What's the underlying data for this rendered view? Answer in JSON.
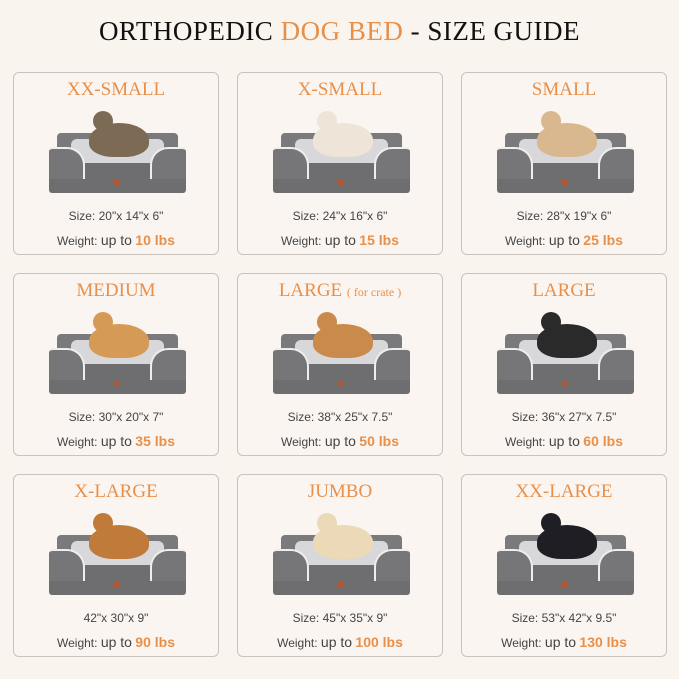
{
  "title": {
    "part1": "ORTHOPEDIC",
    "highlight": "DOG BED",
    "part2": "- SIZE GUIDE"
  },
  "colors": {
    "accent": "#e8904a",
    "background": "#faf4ef",
    "bed": "#6e6e70"
  },
  "labels": {
    "size": "Size:",
    "weight": "Weight:",
    "up_to": "up to"
  },
  "cards": [
    {
      "name": "XX-SMALL",
      "sub": "",
      "size": "20\"x 14\"x 6\"",
      "show_size_label": true,
      "weight": "10 lbs",
      "pet": "cat",
      "pet_color": "#7d6a55"
    },
    {
      "name": "X-SMALL",
      "sub": "",
      "size": "24\"x 16\"x 6\"",
      "show_size_label": true,
      "weight": "15 lbs",
      "pet": "dog",
      "pet_color": "#efe4d8"
    },
    {
      "name": "SMALL",
      "sub": "",
      "size": "28\"x 19\"x 6\"",
      "show_size_label": true,
      "weight": "25 lbs",
      "pet": "dog",
      "pet_color": "#d9b88f"
    },
    {
      "name": "MEDIUM",
      "sub": "",
      "size": "30\"x 20\"x 7\"",
      "show_size_label": true,
      "weight": "35 lbs",
      "pet": "dog",
      "pet_color": "#d59a55"
    },
    {
      "name": "LARGE",
      "sub": "( for crate )",
      "size": "38\"x 25\"x 7.5\"",
      "show_size_label": true,
      "weight": "50 lbs",
      "pet": "dog",
      "pet_color": "#c98a4b"
    },
    {
      "name": "LARGE",
      "sub": "",
      "size": "36\"x 27\"x 7.5\"",
      "show_size_label": true,
      "weight": "60 lbs",
      "pet": "dog",
      "pet_color": "#2a2a2a"
    },
    {
      "name": "X-LARGE",
      "sub": "",
      "size": "42\"x 30\"x 9\"",
      "show_size_label": false,
      "weight": "90 lbs",
      "pet": "dog",
      "pet_color": "#c07a3a"
    },
    {
      "name": "JUMBO",
      "sub": "",
      "size": "45\"x 35\"x 9\"",
      "show_size_label": true,
      "weight": "100 lbs",
      "pet": "dog",
      "pet_color": "#ecd9b8"
    },
    {
      "name": "XX-LARGE",
      "sub": "",
      "size": "53\"x 42\"x 9.5\"",
      "show_size_label": true,
      "weight": "130 lbs",
      "pet": "dog",
      "pet_color": "#1e1e24"
    }
  ]
}
